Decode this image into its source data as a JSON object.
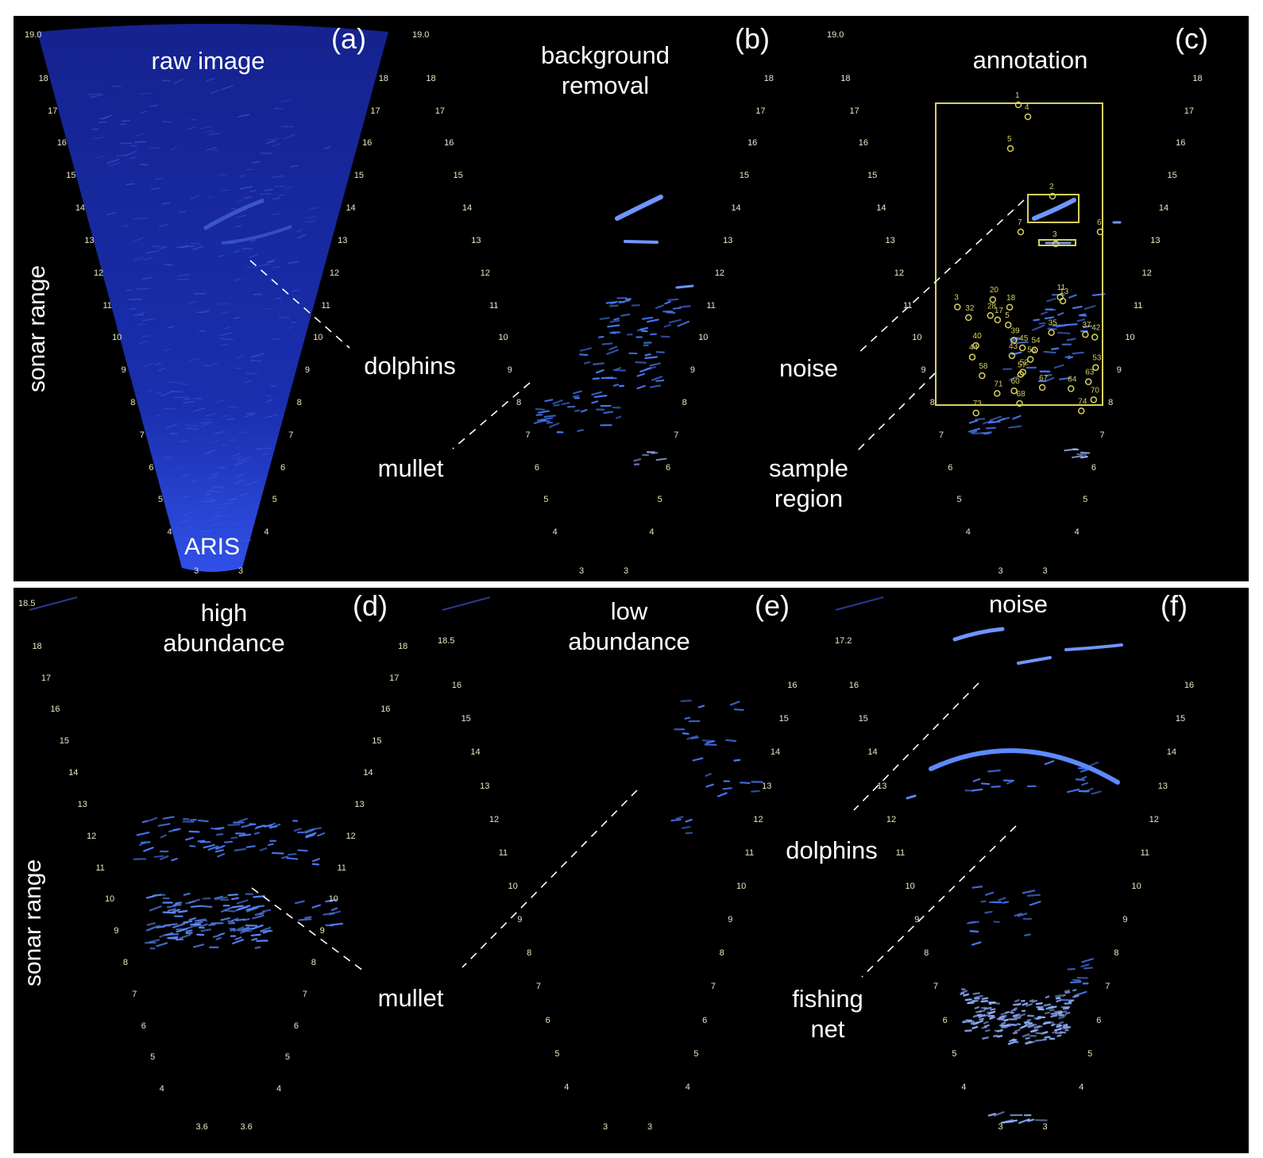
{
  "top_row": {
    "y_axis_label": "sonar range",
    "panels": [
      {
        "id": "a",
        "letter": "(a)",
        "title_lines": [
          "raw image"
        ],
        "source_label": "ARIS",
        "range_top": "19.0",
        "range_bottom": "3",
        "ticks": [
          "18",
          "17",
          "16",
          "15",
          "14",
          "13",
          "12",
          "11",
          "10",
          "9",
          "8",
          "7",
          "6",
          "5",
          "4"
        ]
      },
      {
        "id": "b",
        "letter": "(b)",
        "title_lines": [
          "background",
          "removal"
        ],
        "range_top": "19.0",
        "range_bottom": "3",
        "ticks": [
          "18",
          "17",
          "16",
          "15",
          "14",
          "13",
          "12",
          "11",
          "10",
          "9",
          "8",
          "7",
          "6",
          "5",
          "4"
        ]
      },
      {
        "id": "c",
        "letter": "(c)",
        "title_lines": [
          "annotation"
        ],
        "range_top": "19.0",
        "range_bottom": "3",
        "ticks": [
          "18",
          "17",
          "16",
          "15",
          "14",
          "13",
          "12",
          "11",
          "10",
          "9",
          "8",
          "7",
          "6",
          "5",
          "4"
        ]
      }
    ],
    "annotations": [
      {
        "id": "dolphins-top",
        "lines": [
          "dolphins"
        ]
      },
      {
        "id": "mullet-top",
        "lines": [
          "mullet"
        ]
      },
      {
        "id": "noise-top",
        "lines": [
          "noise"
        ]
      },
      {
        "id": "sample-region",
        "lines": [
          "sample",
          "region"
        ]
      }
    ],
    "annotation_ids": [
      "1",
      "4",
      "5",
      "2",
      "7",
      "6",
      "3",
      "11",
      "13",
      "20",
      "18",
      "3",
      "32",
      "28",
      "17",
      "5",
      "35",
      "37",
      "39",
      "42",
      "40",
      "54",
      "45",
      "43",
      "44",
      "56",
      "53",
      "52",
      "57",
      "58",
      "63",
      "67",
      "60",
      "64",
      "71",
      "70",
      "68",
      "74",
      "73"
    ]
  },
  "bottom_row": {
    "y_axis_label": "sonar range",
    "panels": [
      {
        "id": "d",
        "letter": "(d)",
        "title_lines": [
          "high",
          "abundance"
        ],
        "range_top": "18.5",
        "range_bottom": "3.6",
        "ticks": [
          "18",
          "17",
          "16",
          "15",
          "14",
          "13",
          "12",
          "11",
          "10",
          "9",
          "8",
          "7",
          "6",
          "5",
          "4"
        ]
      },
      {
        "id": "e",
        "letter": "(e)",
        "title_lines": [
          "low",
          "abundance"
        ],
        "range_top": "18.5",
        "range_bottom": "3",
        "ticks": [
          "16",
          "15",
          "14",
          "13",
          "12",
          "11",
          "10",
          "9",
          "8",
          "7",
          "6",
          "5",
          "4"
        ]
      },
      {
        "id": "f",
        "letter": "(f)",
        "title_lines": [
          "noise"
        ],
        "range_top": "17.2",
        "range_bottom": "3",
        "ticks": [
          "16",
          "15",
          "14",
          "13",
          "12",
          "11",
          "10",
          "9",
          "8",
          "7",
          "6",
          "5",
          "4"
        ]
      }
    ],
    "annotations": [
      {
        "id": "mullet-bottom",
        "lines": [
          "mullet"
        ]
      },
      {
        "id": "dolphins-bottom",
        "lines": [
          "dolphins"
        ]
      },
      {
        "id": "fishing-net",
        "lines": [
          "fishing",
          "net"
        ]
      }
    ]
  },
  "colors": {
    "background": "#000000",
    "fan": "#1a2fa8",
    "echo": "#4d7dff",
    "tick": "#e8e8c0",
    "annotation": "#d8d060",
    "label": "#ffffff"
  }
}
